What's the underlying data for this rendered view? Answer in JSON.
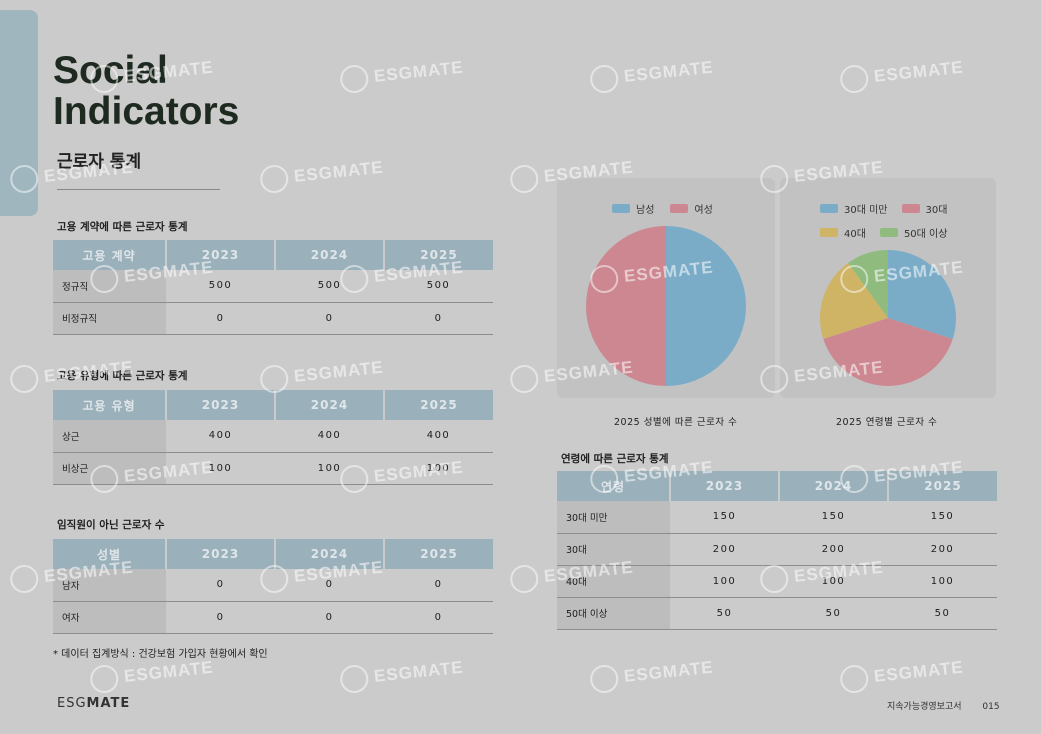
{
  "header": {
    "title_line1": "Social",
    "title_line2": "Indicators",
    "subtitle": "근로자 통계"
  },
  "colors": {
    "accent": "#9ab0bb",
    "male": "#7aacc8",
    "female": "#cc8790",
    "age_under30": "#7aacc8",
    "age_30s": "#cc8790",
    "age_40s": "#cfb466",
    "age_50plus": "#8fbc7e"
  },
  "tables": {
    "contract": {
      "label": "고용 계약에 따른 근로자 통계",
      "headers": [
        "고용 계약",
        "2023",
        "2024",
        "2025"
      ],
      "rows": [
        {
          "name": "정규직",
          "values": [
            "500",
            "500",
            "500"
          ]
        },
        {
          "name": "비정규직",
          "values": [
            "0",
            "0",
            "0"
          ]
        }
      ]
    },
    "type": {
      "label": "고용 유형에 따른 근로자 통계",
      "headers": [
        "고용 유형",
        "2023",
        "2024",
        "2025"
      ],
      "rows": [
        {
          "name": "상근",
          "values": [
            "400",
            "400",
            "400"
          ]
        },
        {
          "name": "비상근",
          "values": [
            "100",
            "100",
            "100"
          ]
        }
      ]
    },
    "non_employee": {
      "label": "임직원이 아닌 근로자 수",
      "headers": [
        "성별",
        "2023",
        "2024",
        "2025"
      ],
      "rows": [
        {
          "name": "남자",
          "values": [
            "0",
            "0",
            "0"
          ]
        },
        {
          "name": "여자",
          "values": [
            "0",
            "0",
            "0"
          ]
        }
      ]
    },
    "age": {
      "label": "연령에 따른 근로자 통계",
      "headers": [
        "연령",
        "2023",
        "2024",
        "2025"
      ],
      "rows": [
        {
          "name": "30대 미만",
          "values": [
            "150",
            "150",
            "150"
          ]
        },
        {
          "name": "30대",
          "values": [
            "200",
            "200",
            "200"
          ]
        },
        {
          "name": "40대",
          "values": [
            "100",
            "100",
            "100"
          ]
        },
        {
          "name": "50대 이상",
          "values": [
            "50",
            "50",
            "50"
          ]
        }
      ]
    }
  },
  "chart_data": [
    {
      "type": "pie",
      "title": "2025 성별에 따른 근로자 수",
      "categories": [
        "남성",
        "여성"
      ],
      "values": [
        50,
        50
      ],
      "legend": "top"
    },
    {
      "type": "pie",
      "title": "2025 연령별 근로자 수",
      "categories": [
        "30대 미만",
        "30대",
        "40대",
        "50대 이상"
      ],
      "values": [
        150,
        200,
        100,
        50
      ],
      "legend": "top"
    }
  ],
  "note": "* 데이터 집계방식 :   건강보험 가입자 현황에서 확인",
  "footer": {
    "logo_a": "ESG",
    "logo_b": "MATE",
    "report": "지속가능경영보고서",
    "page": "015"
  },
  "watermark": "ESGMATE"
}
